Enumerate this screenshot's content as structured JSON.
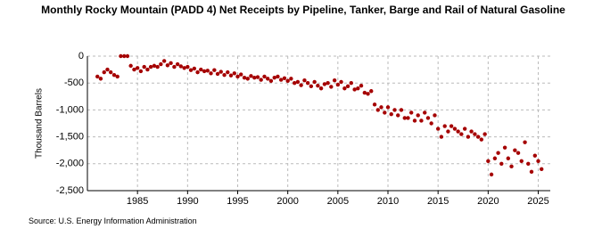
{
  "chart_data": {
    "type": "scatter",
    "title": "Monthly Rocky Mountain (PADD 4) Net Receipts by Pipeline, Tanker, Barge and Rail of Natural Gasoline",
    "y_label": "Thousand Barrels",
    "source": "Source: U.S. Energy Information Administration",
    "color": "#a50000",
    "grid": true,
    "xlim": [
      1980,
      2026.2
    ],
    "xticks": [
      1985,
      1990,
      1995,
      2000,
      2005,
      2010,
      2015,
      2020,
      2025
    ],
    "ylim": [
      -2500,
      0
    ],
    "yticks": [
      {
        "value": -2500,
        "label": "-2,500"
      },
      {
        "value": -2000,
        "label": "-2,000"
      },
      {
        "value": -1500,
        "label": "-1,500"
      },
      {
        "value": -1000,
        "label": "-1,000"
      },
      -500,
      0
    ],
    "x": [
      1981,
      1981.33,
      1981.67,
      1982,
      1982.33,
      1982.67,
      1983,
      1983.33,
      1983.67,
      1984,
      1984.33,
      1984.67,
      1985,
      1985.33,
      1985.67,
      1986,
      1986.33,
      1986.67,
      1987,
      1987.33,
      1987.67,
      1988,
      1988.33,
      1988.67,
      1989,
      1989.33,
      1989.67,
      1990,
      1990.33,
      1990.67,
      1991,
      1991.33,
      1991.67,
      1992,
      1992.33,
      1992.67,
      1993,
      1993.33,
      1993.67,
      1994,
      1994.33,
      1994.67,
      1995,
      1995.33,
      1995.67,
      1996,
      1996.33,
      1996.67,
      1997,
      1997.33,
      1997.67,
      1998,
      1998.33,
      1998.67,
      1999,
      1999.33,
      1999.67,
      2000,
      2000.33,
      2000.67,
      2001,
      2001.33,
      2001.67,
      2002,
      2002.33,
      2002.67,
      2003,
      2003.33,
      2003.67,
      2004,
      2004.33,
      2004.67,
      2005,
      2005.33,
      2005.67,
      2006,
      2006.33,
      2006.67,
      2007,
      2007.33,
      2007.67,
      2008,
      2008.33,
      2008.67,
      2009,
      2009.33,
      2009.67,
      2010,
      2010.33,
      2010.67,
      2011,
      2011.33,
      2011.67,
      2012,
      2012.33,
      2012.67,
      2013,
      2013.33,
      2013.67,
      2014,
      2014.33,
      2014.67,
      2015,
      2015.33,
      2015.67,
      2016,
      2016.33,
      2016.67,
      2017,
      2017.33,
      2017.67,
      2018,
      2018.33,
      2018.67,
      2019,
      2019.33,
      2019.67,
      2020,
      2020.33,
      2020.67,
      2021,
      2021.33,
      2021.67,
      2022,
      2022.33,
      2022.67,
      2023,
      2023.33,
      2023.67,
      2024,
      2024.33,
      2024.67,
      2025,
      2025.33
    ],
    "values": [
      -380,
      -420,
      -300,
      -250,
      -300,
      -350,
      -380,
      0,
      0,
      0,
      -180,
      -250,
      -220,
      -280,
      -200,
      -250,
      -200,
      -180,
      -200,
      -150,
      -90,
      -170,
      -130,
      -200,
      -150,
      -190,
      -220,
      -200,
      -260,
      -230,
      -300,
      -250,
      -280,
      -270,
      -320,
      -260,
      -330,
      -290,
      -350,
      -300,
      -360,
      -320,
      -380,
      -340,
      -400,
      -420,
      -370,
      -400,
      -390,
      -440,
      -380,
      -420,
      -460,
      -400,
      -380,
      -440,
      -410,
      -460,
      -420,
      -500,
      -480,
      -540,
      -450,
      -500,
      -560,
      -480,
      -550,
      -600,
      -520,
      -500,
      -570,
      -450,
      -530,
      -480,
      -600,
      -560,
      -500,
      -620,
      -600,
      -550,
      -680,
      -700,
      -650,
      -900,
      -1000,
      -950,
      -1050,
      -950,
      -1080,
      -1000,
      -1100,
      -1000,
      -1150,
      -1150,
      -1050,
      -1200,
      -1100,
      -1200,
      -1050,
      -1150,
      -1250,
      -1100,
      -1350,
      -1500,
      -1300,
      -1400,
      -1300,
      -1350,
      -1400,
      -1450,
      -1350,
      -1500,
      -1400,
      -1450,
      -1500,
      -1550,
      -1450,
      -1950,
      -2200,
      -1900,
      -1800,
      -2000,
      -1700,
      -1900,
      -2050,
      -1750,
      -1800,
      -1950,
      -1600,
      -2000,
      -2150,
      -1850,
      -1950,
      -2100
    ]
  }
}
